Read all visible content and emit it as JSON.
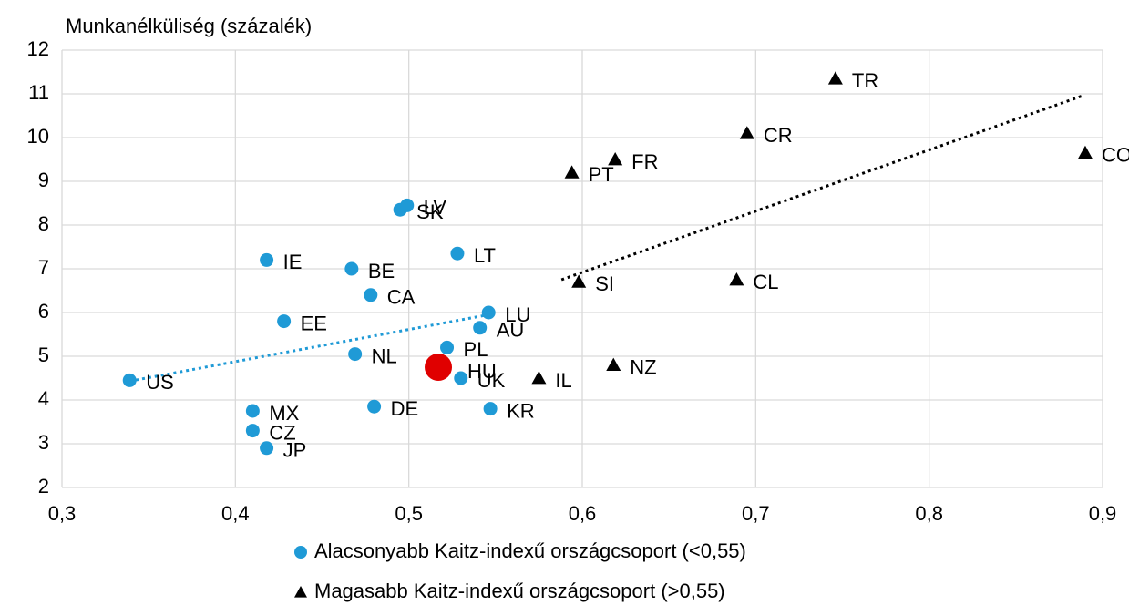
{
  "chart_data": {
    "type": "scatter",
    "y_axis_title": "Munkanélküliség (százalék)",
    "xlim": [
      0.3,
      0.9
    ],
    "xticks": [
      {
        "value": 0.3,
        "label": "0,3"
      },
      {
        "value": 0.4,
        "label": "0,4"
      },
      {
        "value": 0.5,
        "label": "0,5"
      },
      {
        "value": 0.6,
        "label": "0,6"
      },
      {
        "value": 0.7,
        "label": "0,7"
      },
      {
        "value": 0.8,
        "label": "0,8"
      },
      {
        "value": 0.9,
        "label": "0,9"
      }
    ],
    "ylim": [
      2,
      12
    ],
    "yticks": [
      2,
      3,
      4,
      5,
      6,
      7,
      8,
      9,
      10,
      11,
      12
    ],
    "grid": true,
    "series": [
      {
        "name": "Alacsonyabb Kaitz-indexű országcsoport (<0,55)",
        "color": "#1f9ad6",
        "marker": "circle",
        "labels": [
          "US",
          "MX",
          "CZ",
          "JP",
          "IE",
          "EE",
          "NL",
          "BE",
          "CA",
          "DE",
          "SK",
          "LV",
          "LT",
          "LU",
          "AU",
          "PL",
          "UK",
          "KR"
        ],
        "x": [
          0.339,
          0.41,
          0.41,
          0.418,
          0.418,
          0.428,
          0.469,
          0.467,
          0.478,
          0.48,
          0.495,
          0.499,
          0.528,
          0.546,
          0.541,
          0.522,
          0.53,
          0.547
        ],
        "values": [
          4.45,
          3.75,
          3.3,
          2.9,
          7.2,
          5.8,
          5.05,
          7.0,
          6.4,
          3.85,
          8.35,
          8.45,
          7.35,
          6.0,
          5.65,
          5.2,
          4.5,
          3.8
        ],
        "trendline": {
          "x": [
            0.339,
            0.546
          ],
          "values": [
            4.43,
            5.95
          ]
        }
      },
      {
        "name": "Magasabb Kaitz-indexű országcsoport (>0,55)",
        "color": "#000000",
        "marker": "triangle",
        "labels": [
          "TR",
          "CR",
          "FR",
          "PT",
          "CO",
          "SI",
          "CL",
          "IL",
          "NZ"
        ],
        "x": [
          0.746,
          0.695,
          0.619,
          0.594,
          0.89,
          0.598,
          0.689,
          0.575,
          0.618
        ],
        "values": [
          11.35,
          10.1,
          9.5,
          9.2,
          9.65,
          6.7,
          6.75,
          4.5,
          4.8
        ],
        "trendline": {
          "x": [
            0.588,
            0.888
          ],
          "values": [
            6.75,
            10.95
          ]
        }
      }
    ],
    "highlight": {
      "label": "HU",
      "x": 0.517,
      "y": 4.75,
      "color": "#e00000"
    }
  }
}
